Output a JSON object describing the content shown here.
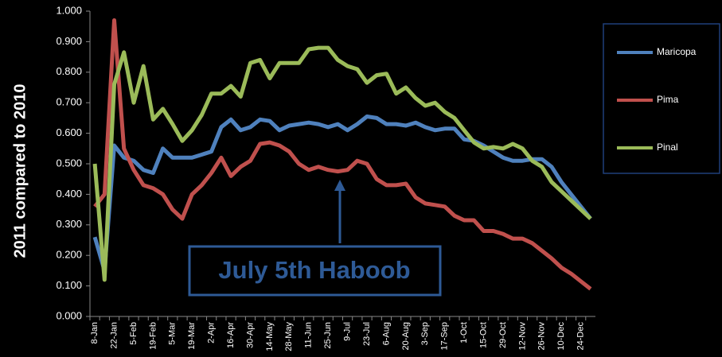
{
  "chart_data": {
    "type": "line",
    "y_label": "2011 compared to 2010",
    "annotation": "July 5th Haboob",
    "categories": [
      "8-Jan",
      null,
      "22-Jan",
      null,
      "5-Feb",
      null,
      "19-Feb",
      null,
      "5-Mar",
      null,
      "19-Mar",
      null,
      "2-Apr",
      null,
      "16-Apr",
      null,
      "30-Apr",
      null,
      "14-May",
      null,
      "28-May",
      null,
      "11-Jun",
      null,
      "25-Jun",
      null,
      "9-Jul",
      null,
      "23-Jul",
      null,
      "6-Aug",
      null,
      "20-Aug",
      null,
      "3-Sep",
      null,
      "17-Sep",
      null,
      "1-Oct",
      null,
      "15-Oct",
      null,
      "29-Oct",
      null,
      "12-Nov",
      null,
      "26-Nov",
      null,
      "10-Dec",
      null,
      "24-Dec",
      null
    ],
    "series": [
      {
        "name": "Maricopa",
        "color": "#4f81bd",
        "values": [
          0.26,
          0.15,
          0.56,
          0.52,
          0.51,
          0.48,
          0.47,
          0.55,
          0.52,
          0.52,
          0.52,
          0.53,
          0.54,
          0.62,
          0.645,
          0.61,
          0.62,
          0.645,
          0.64,
          0.61,
          0.625,
          0.63,
          0.635,
          0.63,
          0.62,
          0.63,
          0.61,
          0.63,
          0.655,
          0.65,
          0.63,
          0.63,
          0.625,
          0.635,
          0.62,
          0.61,
          0.615,
          0.615,
          0.58,
          0.575,
          0.56,
          0.54,
          0.52,
          0.51,
          0.51,
          0.515,
          0.515,
          0.49,
          0.44,
          0.4,
          0.36,
          0.32
        ]
      },
      {
        "name": "Pima",
        "color": "#c0504d",
        "values": [
          0.36,
          0.4,
          0.97,
          0.55,
          0.48,
          0.43,
          0.42,
          0.4,
          0.35,
          0.32,
          0.4,
          0.43,
          0.47,
          0.52,
          0.46,
          0.49,
          0.51,
          0.565,
          0.57,
          0.56,
          0.54,
          0.5,
          0.48,
          0.49,
          0.48,
          0.475,
          0.48,
          0.51,
          0.5,
          0.45,
          0.43,
          0.43,
          0.435,
          0.39,
          0.37,
          0.365,
          0.36,
          0.33,
          0.315,
          0.315,
          0.28,
          0.28,
          0.27,
          0.255,
          0.255,
          0.24,
          0.215,
          0.19,
          0.16,
          0.14,
          0.115,
          0.09
        ]
      },
      {
        "name": "Pinal",
        "color": "#9bbb59",
        "values": [
          0.5,
          0.12,
          0.76,
          0.865,
          0.7,
          0.82,
          0.645,
          0.68,
          0.63,
          0.575,
          0.61,
          0.66,
          0.73,
          0.73,
          0.755,
          0.72,
          0.83,
          0.84,
          0.78,
          0.83,
          0.83,
          0.83,
          0.875,
          0.88,
          0.88,
          0.84,
          0.82,
          0.81,
          0.765,
          0.79,
          0.795,
          0.73,
          0.75,
          0.715,
          0.69,
          0.7,
          0.67,
          0.65,
          0.61,
          0.57,
          0.55,
          0.555,
          0.55,
          0.565,
          0.55,
          0.51,
          0.49,
          0.44,
          0.41,
          0.38,
          0.35,
          0.32
        ]
      }
    ],
    "ylim": [
      0,
      1
    ],
    "yticks": [
      {
        "value": 0,
        "label": "0.000"
      },
      {
        "value": 0.1,
        "label": "0.100"
      },
      {
        "value": 0.2,
        "label": "0.200"
      },
      {
        "value": 0.3,
        "label": "0.300"
      },
      {
        "value": 0.4,
        "label": "0.400"
      },
      {
        "value": 0.5,
        "label": "0.500"
      },
      {
        "value": 0.6,
        "label": "0.600"
      },
      {
        "value": 0.7,
        "label": "0.700"
      },
      {
        "value": 0.8,
        "label": "0.800"
      },
      {
        "value": 0.9,
        "label": "0.900"
      },
      {
        "value": 1,
        "label": "1.000"
      }
    ],
    "grid": false,
    "legend": "right"
  }
}
